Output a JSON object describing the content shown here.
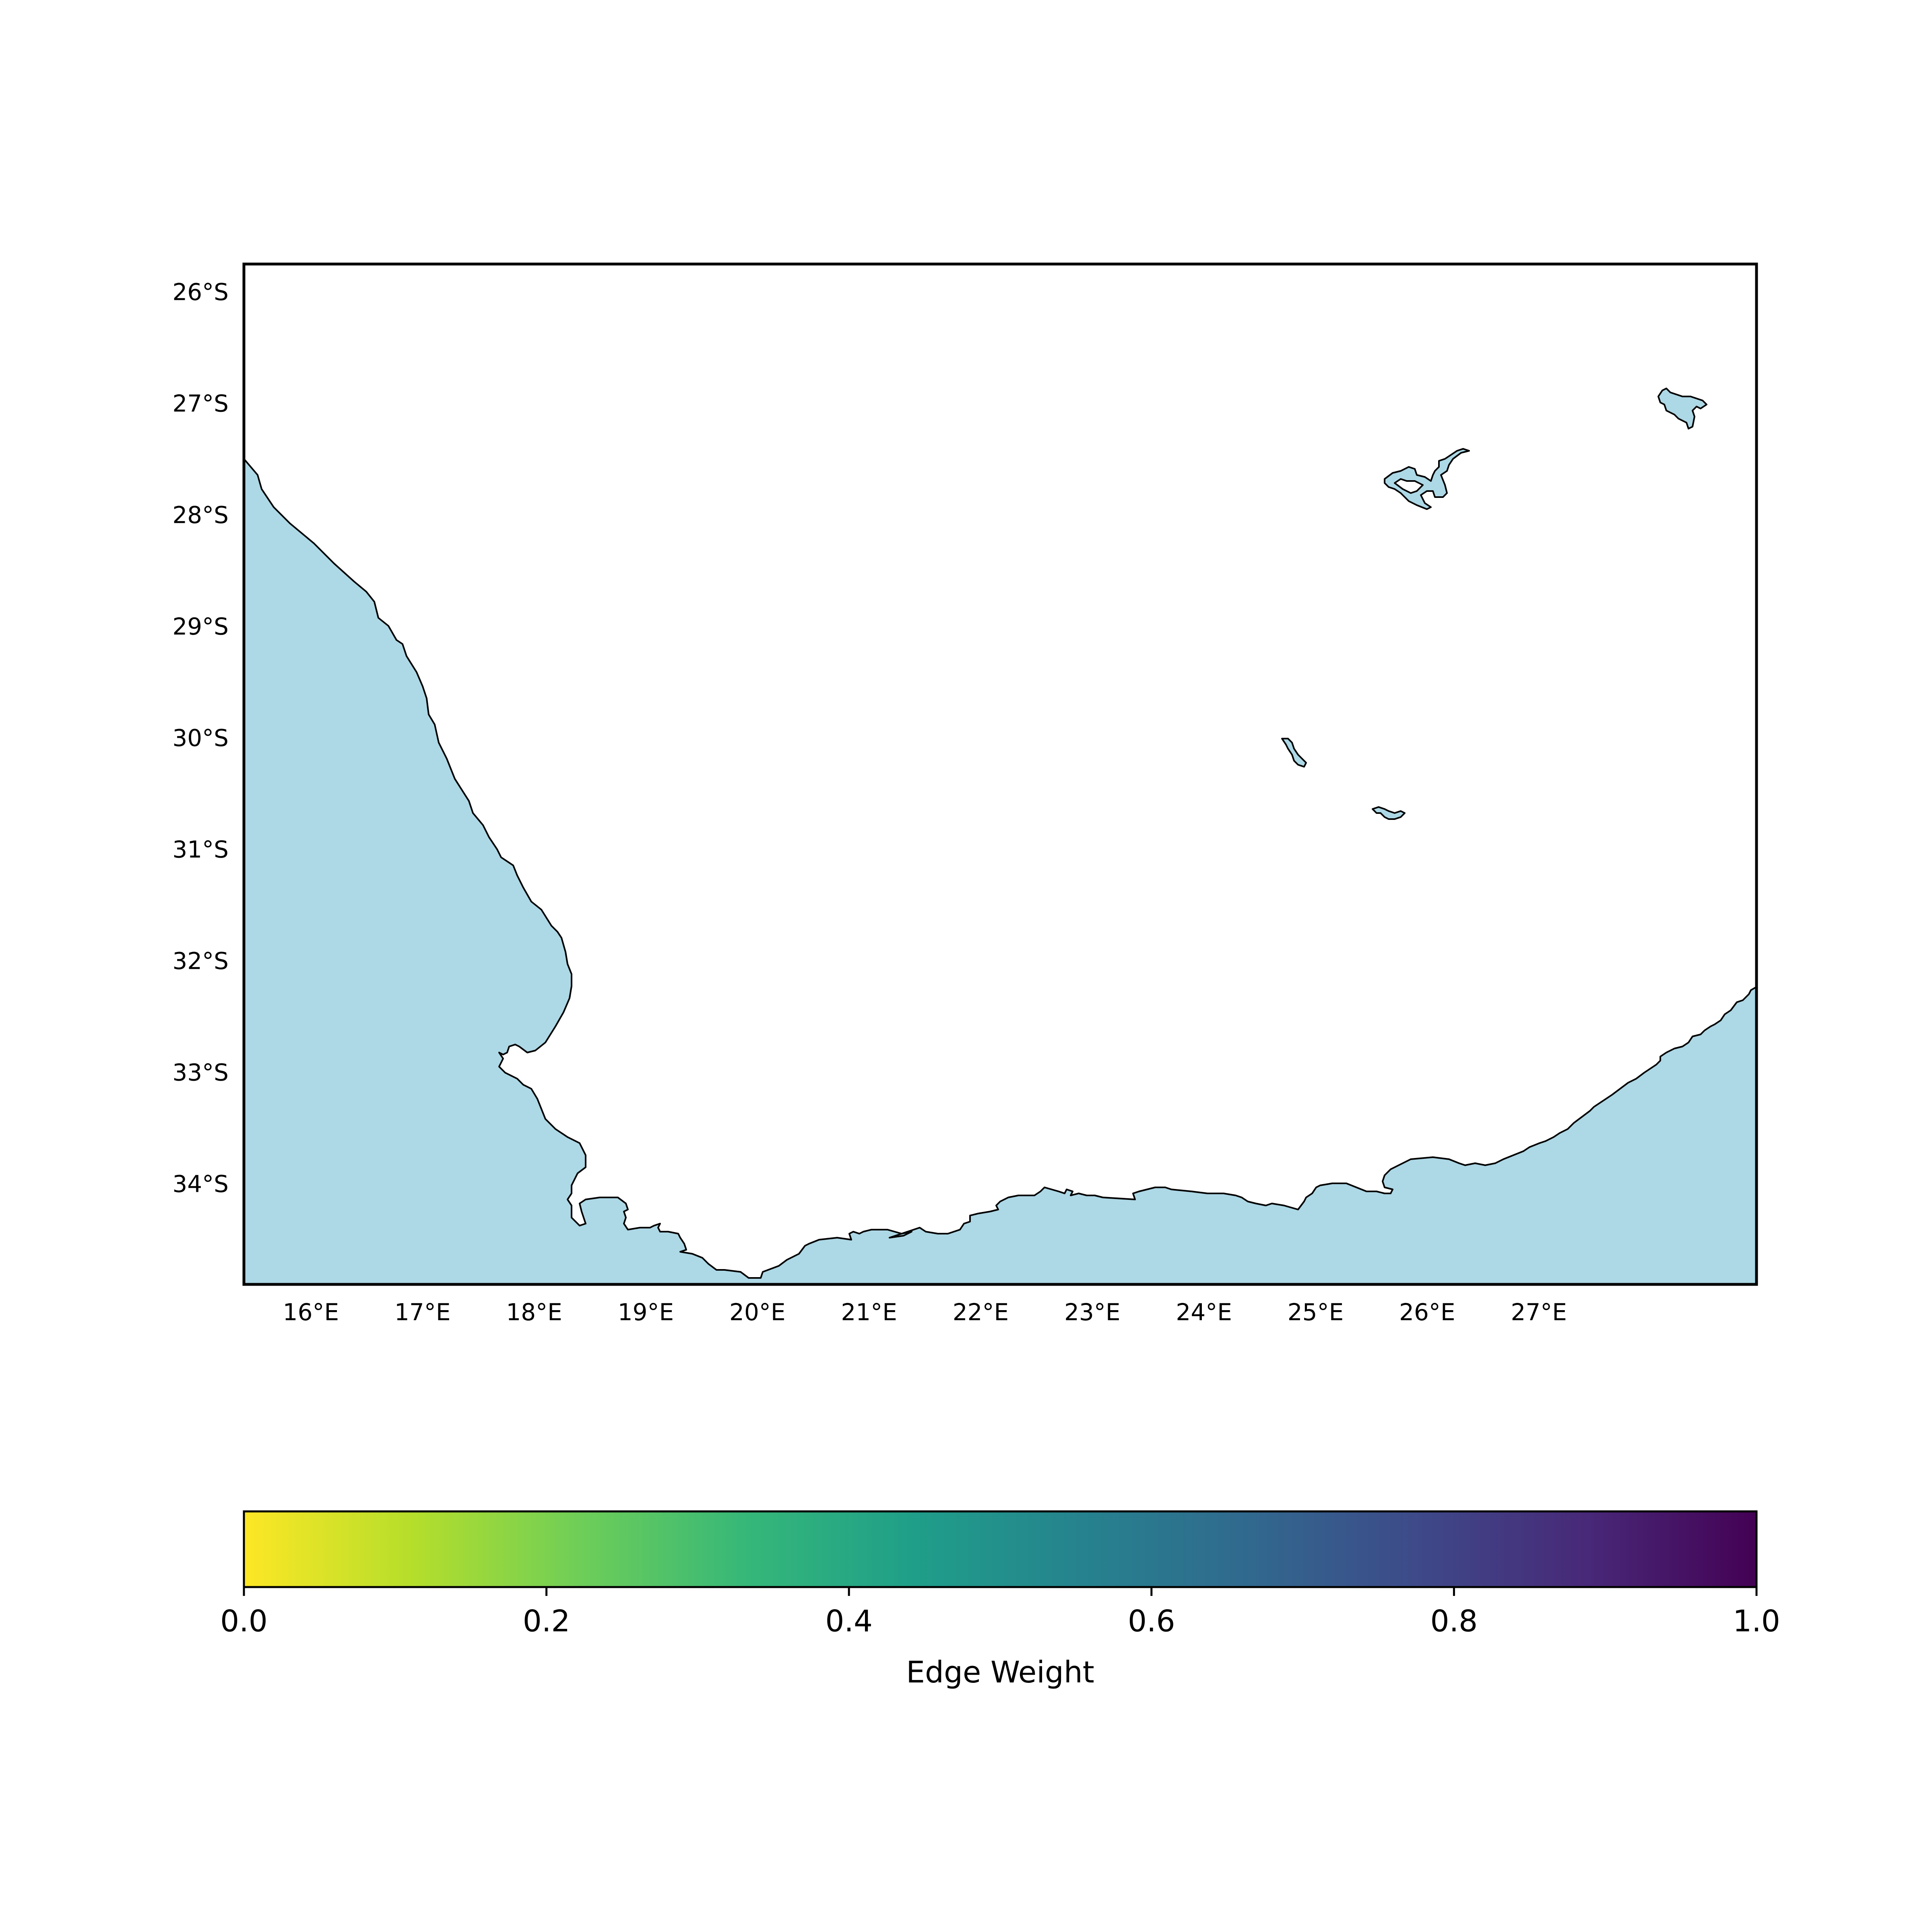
{
  "map": {
    "extent": {
      "lon_min": 15.4,
      "lon_max": 28.95,
      "lat_min": -34.9,
      "lat_max": -25.75
    },
    "ocean_color": "#add8e6",
    "land_color": "#ffffff",
    "coastline_color": "#000000",
    "lat_ticks": [
      {
        "value": -26,
        "label": "26°S"
      },
      {
        "value": -27,
        "label": "27°S"
      },
      {
        "value": -28,
        "label": "28°S"
      },
      {
        "value": -29,
        "label": "29°S"
      },
      {
        "value": -30,
        "label": "30°S"
      },
      {
        "value": -31,
        "label": "31°S"
      },
      {
        "value": -32,
        "label": "32°S"
      },
      {
        "value": -33,
        "label": "33°S"
      },
      {
        "value": -34,
        "label": "34°S"
      }
    ],
    "lon_ticks": [
      {
        "value": 16,
        "label": "16°E"
      },
      {
        "value": 17,
        "label": "17°E"
      },
      {
        "value": 18,
        "label": "18°E"
      },
      {
        "value": 19,
        "label": "19°E"
      },
      {
        "value": 20,
        "label": "20°E"
      },
      {
        "value": 21,
        "label": "21°E"
      },
      {
        "value": 22,
        "label": "22°E"
      },
      {
        "value": 23,
        "label": "23°E"
      },
      {
        "value": 24,
        "label": "24°E"
      },
      {
        "value": 25,
        "label": "25°E"
      },
      {
        "value": 26,
        "label": "26°E"
      },
      {
        "value": 27,
        "label": "27°E"
      }
    ],
    "lakes": [
      "lake-vaal-dam-area",
      "lake-northeast",
      "lake-gariep",
      "lake-small"
    ]
  },
  "colorbar": {
    "label": "Edge Weight",
    "colormap": "viridis_r",
    "min": 0.0,
    "max": 1.0,
    "stops": [
      "#fde725",
      "#b5de2b",
      "#6ece58",
      "#35b779",
      "#1f9e89",
      "#26828e",
      "#31688e",
      "#3e4989",
      "#482878",
      "#440154"
    ],
    "ticks": [
      {
        "value": 0.0,
        "label": "0.0"
      },
      {
        "value": 0.2,
        "label": "0.2"
      },
      {
        "value": 0.4,
        "label": "0.4"
      },
      {
        "value": 0.6,
        "label": "0.6"
      },
      {
        "value": 0.8,
        "label": "0.8"
      },
      {
        "value": 1.0,
        "label": "1.0"
      }
    ]
  }
}
